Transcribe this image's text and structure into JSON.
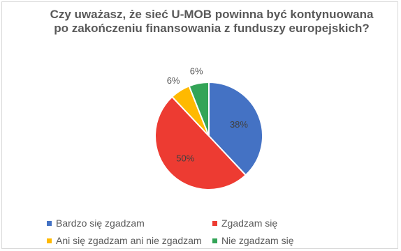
{
  "chart_data": {
    "type": "pie",
    "title": "Czy uważasz, że sieć U-MOB powinna być kontynuowana po zakończeniu finansowania z funduszy europejskich?",
    "categories": [
      "Bardzo się zgadzam",
      "Zgadzam się",
      "Ani się zgadzam ani nie zgadzam",
      "Nie zgadzam się"
    ],
    "values": [
      38,
      50,
      6,
      6
    ],
    "labels": [
      "38%",
      "50%",
      "6%",
      "6%"
    ],
    "colors": [
      "#4472C4",
      "#ED3B32",
      "#FFB900",
      "#33A457"
    ],
    "legend_position": "bottom"
  }
}
